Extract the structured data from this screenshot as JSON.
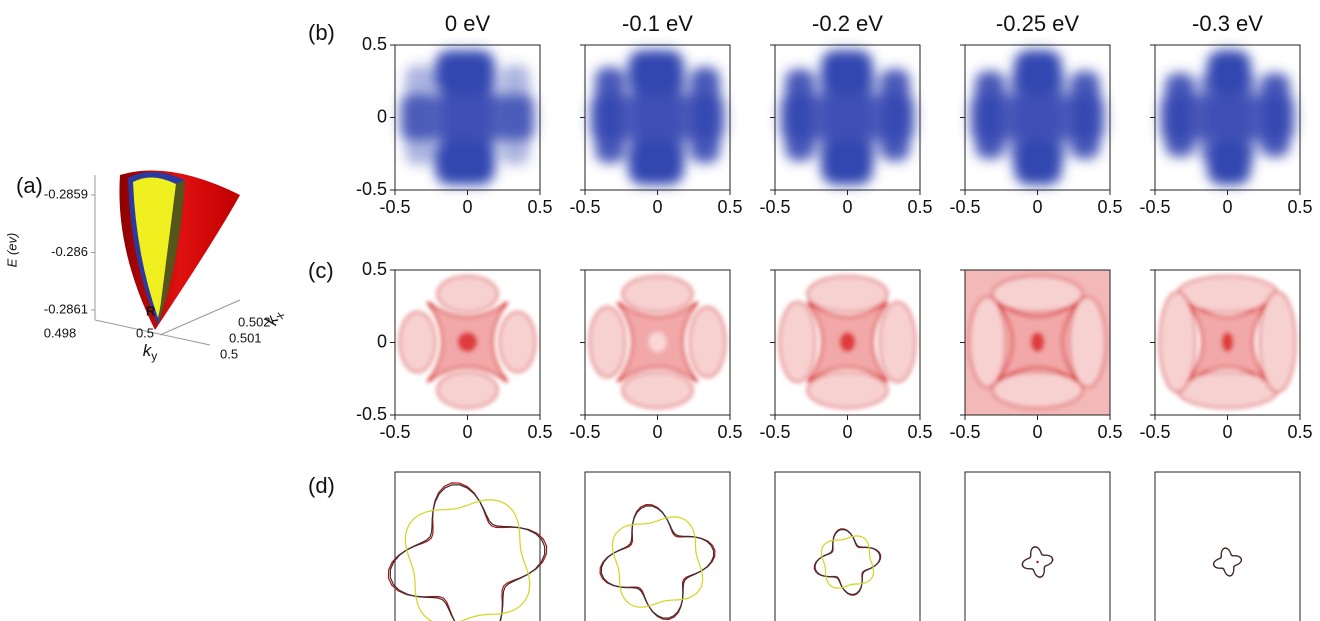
{
  "panel_a": {
    "label": "(a)",
    "z_label": "E (ev)",
    "zticks": [
      -0.2859,
      -0.286,
      -0.2861
    ],
    "ky_ticks": [
      0.498,
      0.5
    ],
    "kx_ticks": [
      0.5,
      0.501,
      0.502
    ],
    "ky_symbol": "k",
    "ky_subscript": "y",
    "kx_symbol": "k",
    "kx_subscript": "x",
    "point_label": "R"
  },
  "panel_b": {
    "label": "(b)"
  },
  "panel_c": {
    "label": "(c)"
  },
  "panel_d": {
    "label": "(d)"
  },
  "energies": [
    "0 eV",
    "-0.1 eV",
    "-0.2 eV",
    "-0.25 eV",
    "-0.3 eV"
  ],
  "ticks": [
    -0.5,
    0,
    0.5
  ]
}
